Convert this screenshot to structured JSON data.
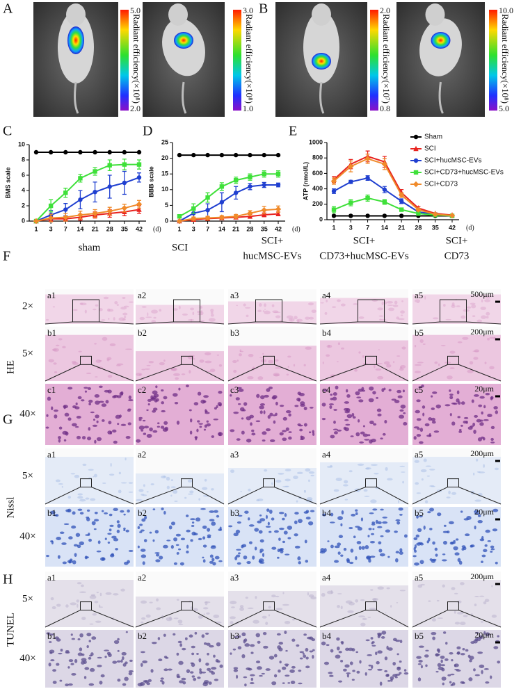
{
  "panel_labels": [
    "A",
    "B",
    "C",
    "D",
    "E",
    "F",
    "G",
    "H"
  ],
  "imaging": [
    {
      "max": "5.0",
      "min": "2.0",
      "label": "Radiant efficiency(×10⁸)"
    },
    {
      "max": "3.0",
      "min": "1.0",
      "label": "Radiant efficiency(×10⁸)"
    },
    {
      "max": "2.0",
      "min": "0.8",
      "label": "Radiant efficiency(×10⁷)"
    },
    {
      "max": "10.0",
      "min": "5.0",
      "label": "Radiant efficiency(×10⁸)"
    }
  ],
  "chart_data": [
    {
      "type": "line",
      "ylabel": "BMS scale",
      "xunit": "(d)",
      "categories": [
        "1",
        "3",
        "7",
        "14",
        "21",
        "28",
        "35",
        "42"
      ],
      "ylim": [
        0,
        10
      ],
      "yticks": [
        0,
        2,
        4,
        6,
        8,
        10
      ],
      "series": [
        {
          "color": "#000000",
          "marker": "circle",
          "values": [
            9,
            9,
            9,
            9,
            9,
            9,
            9,
            9
          ]
        },
        {
          "color": "#e8231f",
          "marker": "triangle",
          "values": [
            0,
            0.3,
            0.3,
            0.5,
            0.8,
            1.0,
            1.2,
            1.5
          ],
          "errors": [
            0,
            0.3,
            0.3,
            0.4,
            0.4,
            0.5,
            0.5,
            0.5
          ]
        },
        {
          "color": "#1f3fd0",
          "marker": "circle",
          "values": [
            0,
            0.8,
            1.5,
            2.8,
            3.8,
            4.5,
            5.0,
            5.7
          ],
          "errors": [
            0,
            0.6,
            0.8,
            1.2,
            1.3,
            1.5,
            1.5,
            0.6
          ]
        },
        {
          "color": "#3fe03a",
          "marker": "square",
          "values": [
            0,
            2.0,
            3.7,
            5.6,
            6.5,
            7.3,
            7.4,
            7.4
          ],
          "errors": [
            0.2,
            0.8,
            0.6,
            0.5,
            0.5,
            0.7,
            0.7,
            0.6
          ]
        },
        {
          "color": "#f08a2a",
          "marker": "diamond",
          "values": [
            0,
            0.4,
            0.5,
            0.8,
            1.0,
            1.3,
            1.7,
            2.2
          ],
          "errors": [
            0,
            0.5,
            0.5,
            0.5,
            0.5,
            0.5,
            0.5,
            0.5
          ]
        }
      ]
    },
    {
      "type": "line",
      "ylabel": "BBB scale",
      "xunit": "(d)",
      "categories": [
        "1",
        "3",
        "7",
        "14",
        "21",
        "28",
        "35",
        "42"
      ],
      "ylim": [
        0,
        25
      ],
      "yticks": [
        0,
        5,
        10,
        15,
        20,
        25
      ],
      "series": [
        {
          "color": "#000000",
          "marker": "circle",
          "values": [
            21,
            21,
            21,
            21,
            21,
            21,
            21,
            21
          ]
        },
        {
          "color": "#e8231f",
          "marker": "triangle",
          "values": [
            0,
            0.5,
            0.8,
            1.0,
            1.2,
            1.5,
            2.0,
            2.3
          ],
          "errors": [
            0,
            0.5,
            0.5,
            0.5,
            0.5,
            0.6,
            0.6,
            0.6
          ]
        },
        {
          "color": "#1f3fd0",
          "marker": "circle",
          "values": [
            0,
            2.5,
            3.5,
            6,
            9,
            11,
            11.5,
            11.5
          ],
          "errors": [
            0,
            1.5,
            2,
            3,
            2,
            1,
            0.8,
            0.6
          ]
        },
        {
          "color": "#3fe03a",
          "marker": "square",
          "values": [
            1.5,
            4,
            7.5,
            11,
            13,
            14,
            15,
            15
          ],
          "errors": [
            0.5,
            1.5,
            1.5,
            1.2,
            1,
            1,
            1,
            1
          ]
        },
        {
          "color": "#f08a2a",
          "marker": "diamond",
          "values": [
            0,
            0.8,
            1.0,
            1.2,
            1.5,
            2.5,
            3.5,
            3.8
          ],
          "errors": [
            0,
            0.5,
            0.5,
            0.5,
            0.6,
            0.8,
            1.2,
            1
          ]
        }
      ]
    },
    {
      "type": "line",
      "ylabel": "ATP (nmol/L)",
      "xunit": "(d)",
      "legend": "top-right",
      "categories": [
        "1",
        "3",
        "7",
        "14",
        "21",
        "28",
        "35",
        "42"
      ],
      "ylim": [
        0,
        1000
      ],
      "yticks": [
        0,
        200,
        400,
        600,
        800,
        1000
      ],
      "series": [
        {
          "name": "Sham",
          "color": "#000000",
          "marker": "circle",
          "values": [
            50,
            50,
            50,
            50,
            50,
            50,
            50,
            50
          ]
        },
        {
          "name": "SCI",
          "color": "#e8231f",
          "marker": "triangle",
          "values": [
            520,
            720,
            820,
            750,
            350,
            150,
            80,
            60
          ],
          "errors": [
            40,
            60,
            70,
            70,
            40,
            20,
            10,
            10
          ]
        },
        {
          "name": "SCI+hucMSC-EVs",
          "color": "#1f3fd0",
          "marker": "circle",
          "values": [
            370,
            490,
            540,
            390,
            240,
            100,
            70,
            50
          ],
          "errors": [
            30,
            20,
            30,
            40,
            30,
            15,
            10,
            5
          ]
        },
        {
          "name": "SCI+CD73+hucMSC-EVs",
          "color": "#3fe03a",
          "marker": "square",
          "values": [
            130,
            220,
            280,
            230,
            130,
            80,
            60,
            50
          ],
          "errors": [
            40,
            40,
            40,
            30,
            20,
            10,
            5,
            5
          ]
        },
        {
          "name": "SCI+CD73",
          "color": "#f08a2a",
          "marker": "diamond",
          "values": [
            500,
            690,
            790,
            720,
            320,
            130,
            70,
            55
          ],
          "errors": [
            40,
            70,
            60,
            70,
            30,
            15,
            10,
            5
          ]
        }
      ]
    }
  ],
  "histology": {
    "groups": [
      [
        "sham"
      ],
      [
        "SCI"
      ],
      [
        "SCI+",
        "hucMSC-EVs"
      ],
      [
        "SCI+",
        "CD73+hucMSC-EVs"
      ],
      [
        "SCI+",
        "CD73"
      ]
    ],
    "sections": [
      {
        "stain": "HE",
        "rows": [
          {
            "magnification": "2×",
            "panels": [
              "a1",
              "a2",
              "a3",
              "a4",
              "a5"
            ],
            "scale_bar": "500μm"
          },
          {
            "magnification": "5×",
            "panels": [
              "b1",
              "b2",
              "b3",
              "b4",
              "b5"
            ],
            "scale_bar": "200μm"
          },
          {
            "magnification": "40×",
            "panels": [
              "c1",
              "c2",
              "c3",
              "c4",
              "c5"
            ],
            "scale_bar": "20μm"
          }
        ]
      },
      {
        "stain": "Nissl",
        "rows": [
          {
            "magnification": "5×",
            "panels": [
              "a1",
              "a2",
              "a3",
              "a4",
              "a5"
            ],
            "scale_bar": "200μm"
          },
          {
            "magnification": "40×",
            "panels": [
              "b1",
              "b2",
              "b3",
              "b4",
              "b5"
            ],
            "scale_bar": "20μm"
          }
        ]
      },
      {
        "stain": "TUNEL",
        "rows": [
          {
            "magnification": "5×",
            "panels": [
              "a1",
              "a2",
              "a3",
              "a4",
              "a5"
            ],
            "scale_bar": "200μm"
          },
          {
            "magnification": "40×",
            "panels": [
              "b1",
              "b2",
              "b3",
              "b4",
              "b5"
            ],
            "scale_bar": "20μm"
          }
        ]
      }
    ]
  }
}
